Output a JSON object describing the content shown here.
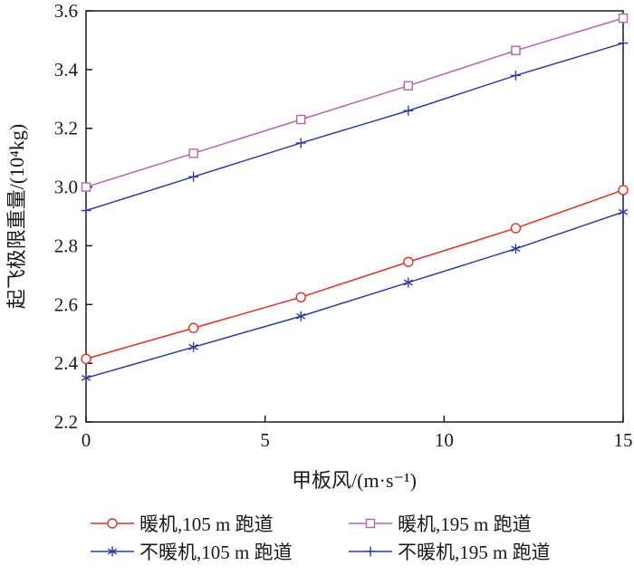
{
  "chart_data": {
    "type": "line",
    "title": "",
    "xlabel": "甲板风/(m·s⁻¹)",
    "ylabel": "起飞极限重量/(10⁴kg)",
    "xlim": [
      0,
      15
    ],
    "ylim": [
      2.2,
      3.6
    ],
    "xticks": [
      0,
      5,
      10,
      15
    ],
    "yticks": [
      2.2,
      2.4,
      2.6,
      2.8,
      3.0,
      3.2,
      3.4,
      3.6
    ],
    "grid": false,
    "legend_position": "bottom",
    "axis_color": "#1a1a1a",
    "x": [
      0,
      3,
      6,
      9,
      12,
      15
    ],
    "series": [
      {
        "name": "暖机,105 m 跑道",
        "marker": "circle",
        "color": "#e03127",
        "values": [
          2.415,
          2.52,
          2.625,
          2.745,
          2.86,
          2.99
        ]
      },
      {
        "name": "暖机,195 m 跑道",
        "marker": "square",
        "color": "#b266ae",
        "values": [
          3.0,
          3.115,
          3.23,
          3.345,
          3.465,
          3.575
        ]
      },
      {
        "name": "不暖机,105 m 跑道",
        "marker": "asterisk",
        "color": "#2e3e9b",
        "values": [
          2.35,
          2.455,
          2.56,
          2.675,
          2.79,
          2.915
        ]
      },
      {
        "name": "不暖机,195 m 跑道",
        "marker": "plus",
        "color": "#2e3e9b",
        "values": [
          2.92,
          3.035,
          3.15,
          3.26,
          3.38,
          3.49
        ]
      }
    ]
  }
}
